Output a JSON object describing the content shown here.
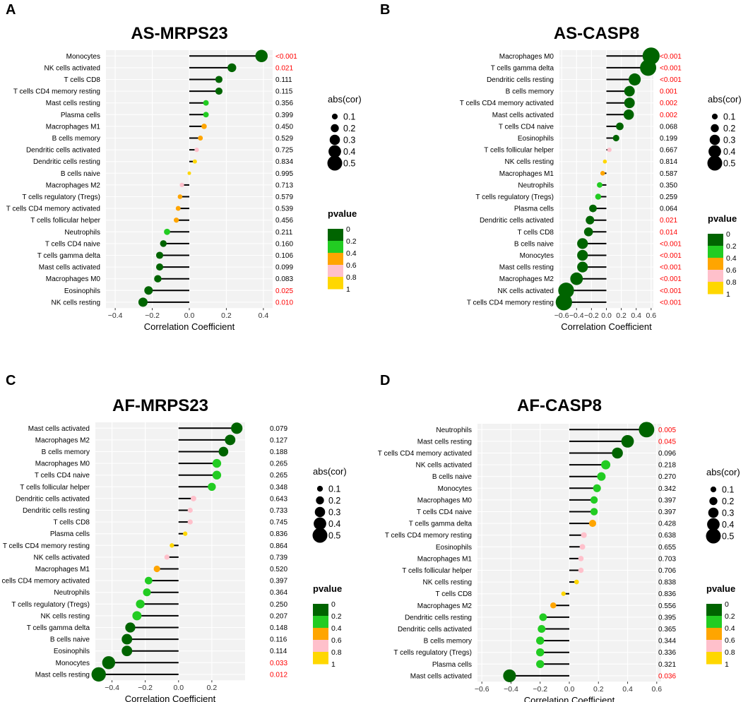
{
  "colors": {
    "pvalue_scale": [
      "#006400",
      "#22cc22",
      "#ffa500",
      "#ffc0cb",
      "#ffd700"
    ],
    "significant_text": "#ff0000",
    "normal_text": "#000000",
    "panel_bg": "#f2f2f2",
    "grid": "#ffffff"
  },
  "legend": {
    "size_title": "abs(cor)",
    "size_levels": [
      "0.1",
      "0.2",
      "0.3",
      "0.4",
      "0.5"
    ],
    "color_title": "pvalue",
    "color_levels": [
      "0",
      "0.2",
      "0.4",
      "0.6",
      "0.8",
      "1"
    ]
  },
  "chart_data": [
    {
      "type": "lollipop",
      "panel_label": "A",
      "title": "AS-MRPS23",
      "xlabel": "Correlation Coefficient",
      "xlim": [
        -0.45,
        0.45
      ],
      "xticks": [
        -0.4,
        -0.2,
        0.0,
        0.2,
        0.4
      ],
      "xtick_labels": [
        "−0.4",
        "−0.2",
        "0.0",
        "0.2",
        "0.4"
      ],
      "categories": [
        "Monocytes",
        "NK cells activated",
        "T cells CD8",
        "T cells CD4 memory resting",
        "Mast cells resting",
        "Plasma cells",
        "Macrophages M1",
        "B cells memory",
        "Dendritic cells activated",
        "Dendritic cells resting",
        "B cells naive",
        "Macrophages M2",
        "T cells regulatory (Tregs)",
        "T cells CD4 memory activated",
        "T cells follicular helper",
        "Neutrophils",
        "T cells CD4 naive",
        "T cells gamma delta",
        "Mast cells activated",
        "Macrophages M0",
        "Eosinophils",
        "NK cells resting"
      ],
      "values": [
        0.39,
        0.23,
        0.16,
        0.16,
        0.09,
        0.09,
        0.08,
        0.06,
        0.04,
        0.03,
        0.0,
        -0.04,
        -0.05,
        -0.06,
        -0.07,
        -0.12,
        -0.14,
        -0.16,
        -0.16,
        -0.17,
        -0.22,
        -0.25
      ],
      "pvalues": [
        "<0.001",
        "0.021",
        "0.111",
        "0.115",
        "0.356",
        "0.399",
        "0.450",
        "0.529",
        "0.725",
        "0.834",
        "0.995",
        "0.713",
        "0.579",
        "0.539",
        "0.456",
        "0.211",
        "0.160",
        "0.106",
        "0.099",
        "0.083",
        "0.025",
        "0.010"
      ]
    },
    {
      "type": "lollipop",
      "panel_label": "B",
      "title": "AS-CASP8",
      "xlabel": "Correlation Coefficient",
      "xlim": [
        -0.63,
        0.63
      ],
      "xticks": [
        -0.6,
        -0.4,
        -0.2,
        0.0,
        0.2,
        0.4,
        0.6
      ],
      "xtick_labels": [
        "−0.6",
        "−0.4",
        "−0.2",
        "0.0",
        "0.2",
        "0.4",
        "0.6"
      ],
      "categories": [
        "Macrophages M0",
        "T cells gamma delta",
        "Dendritic cells resting",
        "B cells memory",
        "T cells CD4 memory activated",
        "Mast cells activated",
        "T cells CD4 naive",
        "Eosinophils",
        "T cells follicular helper",
        "NK cells resting",
        "Macrophages M1",
        "Neutrophils",
        "T cells regulatory (Tregs)",
        "Plasma cells",
        "Dendritic cells activated",
        "T cells CD8",
        "B cells naive",
        "Monocytes",
        "Mast cells resting",
        "Macrophages M2",
        "NK cells activated",
        "T cells CD4 memory resting"
      ],
      "values": [
        0.6,
        0.56,
        0.38,
        0.31,
        0.31,
        0.3,
        0.18,
        0.13,
        0.04,
        -0.02,
        -0.05,
        -0.09,
        -0.11,
        -0.18,
        -0.22,
        -0.24,
        -0.32,
        -0.32,
        -0.32,
        -0.4,
        -0.54,
        -0.57
      ],
      "pvalues": [
        "<0.001",
        "<0.001",
        "<0.001",
        "0.001",
        "0.002",
        "0.002",
        "0.068",
        "0.199",
        "0.667",
        "0.814",
        "0.587",
        "0.350",
        "0.259",
        "0.064",
        "0.021",
        "0.014",
        "<0.001",
        "<0.001",
        "<0.001",
        "<0.001",
        "<0.001",
        "<0.001"
      ]
    },
    {
      "type": "lollipop",
      "panel_label": "C",
      "title": "AF-MRPS23",
      "xlabel": "Correlation Coefficient",
      "xlim": [
        -0.5,
        0.4
      ],
      "xticks": [
        -0.4,
        -0.2,
        0.0,
        0.2
      ],
      "xtick_labels": [
        "−0.4",
        "−0.2",
        "0.0",
        "0.2"
      ],
      "categories": [
        "Mast cells activated",
        "Macrophages M2",
        "B cells memory",
        "Macrophages M0",
        "T cells CD4 naive",
        "T cells follicular helper",
        "Dendritic cells activated",
        "Dendritic cells resting",
        "T cells CD8",
        "Plasma cells",
        "T cells CD4 memory resting",
        "NK cells activated",
        "Macrophages M1",
        "T cells CD4 memory activated",
        "Neutrophils",
        "T cells regulatory (Tregs)",
        "NK cells resting",
        "T cells gamma delta",
        "B cells naive",
        "Eosinophils",
        "Monocytes",
        "Mast cells resting"
      ],
      "values": [
        0.35,
        0.31,
        0.27,
        0.23,
        0.23,
        0.2,
        0.09,
        0.07,
        0.07,
        0.04,
        -0.04,
        -0.07,
        -0.13,
        -0.18,
        -0.19,
        -0.23,
        -0.25,
        -0.29,
        -0.31,
        -0.31,
        -0.42,
        -0.48
      ],
      "pvalues": [
        "0.079",
        "0.127",
        "0.188",
        "0.265",
        "0.265",
        "0.348",
        "0.643",
        "0.733",
        "0.745",
        "0.836",
        "0.864",
        "0.739",
        "0.520",
        "0.397",
        "0.364",
        "0.250",
        "0.207",
        "0.148",
        "0.116",
        "0.114",
        "0.033",
        "0.012"
      ]
    },
    {
      "type": "lollipop",
      "panel_label": "D",
      "title": "AF-CASP8",
      "xlabel": "Correlation Coefficient",
      "xlim": [
        -0.63,
        0.63
      ],
      "xticks": [
        -0.6,
        -0.4,
        -0.2,
        0.0,
        0.2,
        0.4,
        0.6
      ],
      "xtick_labels": [
        "−0.6",
        "−0.4",
        "−0.2",
        "0.0",
        "0.2",
        "0.4",
        "0.6"
      ],
      "categories": [
        "Neutrophils",
        "Mast cells resting",
        "T cells CD4 memory activated",
        "NK cells activated",
        "B cells naive",
        "Monocytes",
        "Macrophages M0",
        "T cells CD4 naive",
        "T cells gamma delta",
        "T cells CD4 memory resting",
        "Eosinophils",
        "Macrophages M1",
        "T cells follicular helper",
        "NK cells resting",
        "T cells CD8",
        "Macrophages M2",
        "Dendritic cells resting",
        "Dendritic cells activated",
        "B cells memory",
        "T cells regulatory (Tregs)",
        "Plasma cells",
        "Mast cells activated"
      ],
      "values": [
        0.53,
        0.4,
        0.33,
        0.25,
        0.22,
        0.19,
        0.17,
        0.17,
        0.16,
        0.1,
        0.09,
        0.08,
        0.08,
        0.05,
        -0.04,
        -0.11,
        -0.18,
        -0.19,
        -0.2,
        -0.2,
        -0.2,
        -0.41
      ],
      "pvalues": [
        "0.005",
        "0.045",
        "0.096",
        "0.218",
        "0.270",
        "0.342",
        "0.397",
        "0.397",
        "0.428",
        "0.638",
        "0.655",
        "0.703",
        "0.706",
        "0.838",
        "0.836",
        "0.556",
        "0.395",
        "0.365",
        "0.344",
        "0.336",
        "0.321",
        "0.036"
      ]
    }
  ]
}
